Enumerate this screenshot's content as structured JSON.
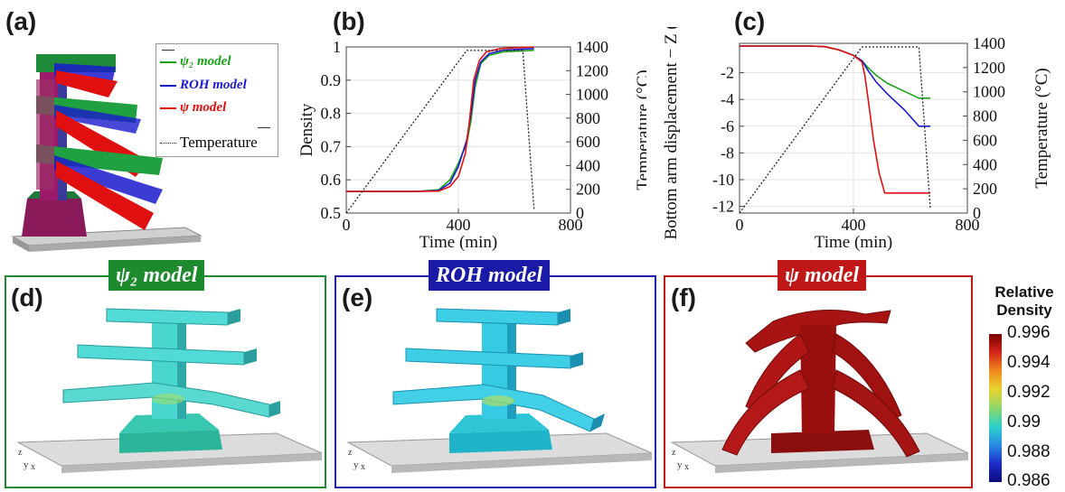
{
  "panel_labels": {
    "a": "(a)",
    "b": "(b)",
    "c": "(c)",
    "d": "(d)",
    "e": "(e)",
    "f": "(f)"
  },
  "colors": {
    "psi2": "#1aa31a",
    "roh": "#1a1acc",
    "psi": "#e01010",
    "temperature": "#222222",
    "frame_d": "#1e8a2e",
    "frame_e": "#1a1aa6",
    "frame_f": "#c01818"
  },
  "legend": {
    "items": [
      {
        "label": "ψ₂ model",
        "color": "#1aa31a"
      },
      {
        "label": "ROH model",
        "color": "#1a1acc"
      },
      {
        "label": "ψ model",
        "color": "#e01010"
      }
    ],
    "temperature_label": "Temperature"
  },
  "badges": {
    "d": "ψ₂ model",
    "e": "ROH model",
    "f": "ψ model"
  },
  "colorbar": {
    "title_line1": "Relative",
    "title_line2": "Density",
    "ticks": [
      "0.996",
      "0.994",
      "0.992",
      "0.99",
      "0.988",
      "0.986"
    ]
  },
  "axis_triad": {
    "z": "z",
    "y": "y",
    "x": "x"
  },
  "chart_data": [
    {
      "type": "line",
      "panel": "b",
      "xlabel": "Time (min)",
      "ylabel": "Density",
      "y2label": "Temperature (°C)",
      "xlim": [
        0,
        800
      ],
      "ylim": [
        0.5,
        1.0
      ],
      "y2lim": [
        0,
        1400
      ],
      "x_ticks": [
        "0",
        "400",
        "800"
      ],
      "y_ticks": [
        "0.5",
        "0.6",
        "0.7",
        "0.8",
        "0.9",
        "1"
      ],
      "y2_ticks": [
        "0",
        "200",
        "400",
        "600",
        "800",
        "1000",
        "1200",
        "1400"
      ],
      "series": [
        {
          "color": "#1aa31a",
          "x": [
            0,
            250,
            330,
            370,
            400,
            430,
            445,
            460,
            480,
            510,
            560,
            620,
            670
          ],
          "y": [
            0.565,
            0.565,
            0.57,
            0.6,
            0.65,
            0.71,
            0.78,
            0.88,
            0.95,
            0.975,
            0.985,
            0.988,
            0.99
          ]
        },
        {
          "color": "#1a1acc",
          "x": [
            0,
            250,
            330,
            370,
            400,
            430,
            445,
            460,
            480,
            510,
            560,
            620,
            670
          ],
          "y": [
            0.565,
            0.565,
            0.568,
            0.59,
            0.64,
            0.72,
            0.8,
            0.9,
            0.955,
            0.98,
            0.99,
            0.993,
            0.995
          ]
        },
        {
          "color": "#e01010",
          "x": [
            0,
            250,
            330,
            370,
            400,
            425,
            440,
            455,
            475,
            500,
            550,
            620,
            670
          ],
          "y": [
            0.565,
            0.565,
            0.566,
            0.58,
            0.61,
            0.68,
            0.78,
            0.9,
            0.96,
            0.985,
            0.995,
            0.998,
            1.0
          ]
        },
        {
          "color": "#222222",
          "dashed": true,
          "axis": "y2",
          "x": [
            0,
            430,
            630,
            670
          ],
          "y": [
            0,
            1370,
            1370,
            30
          ]
        }
      ]
    },
    {
      "type": "line",
      "panel": "c",
      "xlabel": "Time (min)",
      "ylabel": "Bottom arm displacement − Z (mm)",
      "y2label": "Temperature (°C)",
      "xlim": [
        0,
        800
      ],
      "ylim": [
        -12.5,
        0.2
      ],
      "y2lim": [
        0,
        1400
      ],
      "x_ticks": [
        "0",
        "400",
        "800"
      ],
      "y_ticks": [
        "-2",
        "-4",
        "-6",
        "-8",
        "-10",
        "-12"
      ],
      "y2_ticks": [
        "0",
        "200",
        "400",
        "600",
        "800",
        "1000",
        "1200",
        "1400"
      ],
      "series": [
        {
          "color": "#1aa31a",
          "x": [
            0,
            250,
            300,
            350,
            400,
            430,
            450,
            480,
            520,
            580,
            630,
            670
          ],
          "y": [
            0,
            0,
            -0.05,
            -0.3,
            -0.7,
            -1.1,
            -1.6,
            -2.2,
            -2.8,
            -3.4,
            -3.9,
            -3.9
          ]
        },
        {
          "color": "#1a1acc",
          "x": [
            0,
            250,
            300,
            350,
            400,
            430,
            450,
            480,
            520,
            580,
            630,
            670
          ],
          "y": [
            0,
            0,
            -0.05,
            -0.3,
            -0.7,
            -1.1,
            -1.8,
            -2.7,
            -3.6,
            -4.8,
            -6.0,
            -6.0
          ]
        },
        {
          "color": "#e01010",
          "x": [
            0,
            250,
            300,
            350,
            400,
            430,
            440,
            455,
            470,
            490,
            510,
            580,
            670
          ],
          "y": [
            0,
            0,
            -0.05,
            -0.3,
            -0.7,
            -1.2,
            -2.2,
            -4.5,
            -7.0,
            -9.5,
            -11.0,
            -11.0,
            -11.0
          ]
        },
        {
          "color": "#222222",
          "dashed": true,
          "axis": "y2",
          "x": [
            0,
            430,
            630,
            670
          ],
          "y": [
            0,
            1370,
            1370,
            30
          ]
        }
      ]
    }
  ]
}
